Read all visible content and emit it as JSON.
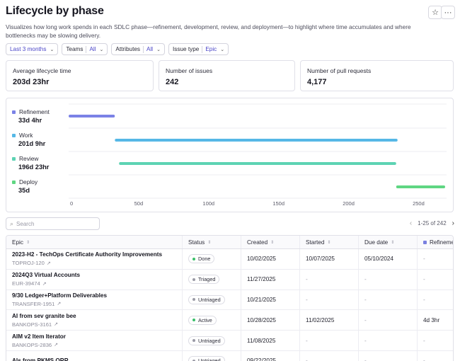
{
  "header": {
    "title": "Lifecycle by phase",
    "description": "Visualizes how long work spends in each SDLC phase—refinement, development, review, and deployment—to highlight where time accumulates and where bottlenecks may be slowing delivery.",
    "star_icon": "star-icon",
    "more_icon": "more-icon"
  },
  "filters": {
    "date_range": "Last 3 months",
    "teams_label": "Teams",
    "teams_value": "All",
    "attributes_label": "Attributes",
    "attributes_value": "All",
    "issue_type_label": "Issue type",
    "issue_type_value": "Epic"
  },
  "metrics": [
    {
      "label": "Average lifecycle time",
      "value": "203d 23hr"
    },
    {
      "label": "Number of issues",
      "value": "242"
    },
    {
      "label": "Number of pull requests",
      "value": "4,177"
    }
  ],
  "chart_data": {
    "type": "bar",
    "orientation": "horizontal-gantt",
    "x_ticks": [
      "0",
      "50d",
      "100d",
      "150d",
      "200d",
      "250d"
    ],
    "xlim": [
      0,
      270
    ],
    "series": [
      {
        "name": "Refinement",
        "label": "33d 4hr",
        "color": "#7b82e6",
        "start": 0,
        "end": 33
      },
      {
        "name": "Work",
        "label": "201d 9hr",
        "color": "#56b8e6",
        "start": 33,
        "end": 235
      },
      {
        "name": "Review",
        "label": "196d 23hr",
        "color": "#5dd3b3",
        "start": 36,
        "end": 234
      },
      {
        "name": "Deploy",
        "label": "35d",
        "color": "#5fd682",
        "start": 234,
        "end": 269
      }
    ],
    "grid": true,
    "legend": "left"
  },
  "search": {
    "placeholder": "Search"
  },
  "pager": {
    "text": "1-25 of 242"
  },
  "table": {
    "columns": [
      "Epic",
      "Status",
      "Created",
      "Started",
      "Due date",
      "Refineme"
    ],
    "rows": [
      {
        "epic": "2023-H2 - TechOps Certificate Authority Improvements",
        "key": "TOPROJ-120",
        "status": "Done",
        "status_color": "#3bbf6a",
        "created": "10/02/2025",
        "started": "10/07/2025",
        "due": "05/10/2024",
        "refinement": "-"
      },
      {
        "epic": "2024Q3 Virtual Accounts",
        "key": "EUR-39474",
        "status": "Triaged",
        "status_color": "#9a9aa6",
        "created": "11/27/2025",
        "started": "-",
        "due": "-",
        "refinement": "-"
      },
      {
        "epic": "9/30 Ledger+Platform Deliverables",
        "key": "TRANSFER-1951",
        "status": "Untriaged",
        "status_color": "#9a9aa6",
        "created": "10/21/2025",
        "started": "-",
        "due": "-",
        "refinement": "-"
      },
      {
        "epic": "AI from sev granite bee",
        "key": "BANKOPS-3161",
        "status": "Active",
        "status_color": "#3bbf6a",
        "created": "10/28/2025",
        "started": "11/02/2025",
        "due": "-",
        "refinement": "4d 3hr"
      },
      {
        "epic": "AIM v2 Item Iterator",
        "key": "BANKOPS-2836",
        "status": "Untriaged",
        "status_color": "#9a9aa6",
        "created": "11/08/2025",
        "started": "-",
        "due": "-",
        "refinement": "-"
      },
      {
        "epic": "AIs from PKMS ORR",
        "key": "",
        "status": "Untriaged",
        "status_color": "#9a9aa6",
        "created": "09/22/2025",
        "started": "-",
        "due": "-",
        "refinement": "-"
      }
    ]
  }
}
